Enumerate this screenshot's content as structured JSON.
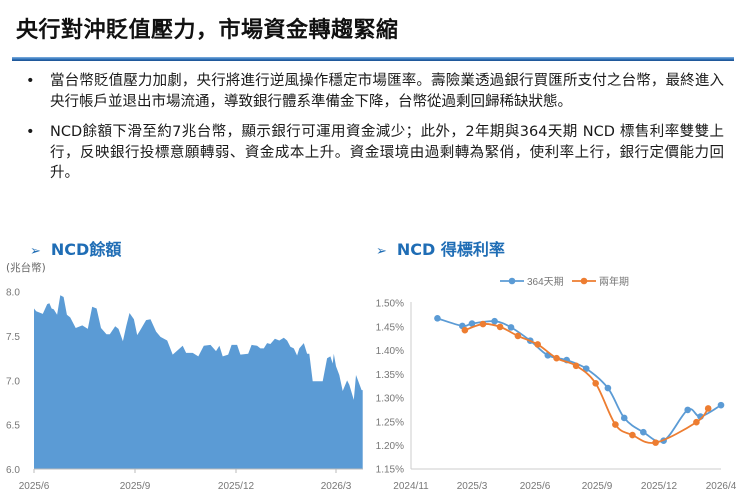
{
  "title": "央行對沖貶值壓力，市場資金轉趨緊縮",
  "bullets": [
    "當台幣貶值壓力加劇，央行將進行逆風操作穩定市場匯率。壽險業透過銀行買匯所支付之台幣，最終進入央行帳戶並退出市場流通，導致銀行體系準備金下降，台幣從過剩回歸稀缺狀態。",
    "NCD餘額下滑至約7兆台幣，顯示銀行可運用資金減少；此外，2年期與364天期 NCD 標售利率雙雙上行，反映銀行投標意願轉弱、資金成本上升。資金環境由過剩轉為緊俏，使利率上行，銀行定價能力回升。"
  ],
  "bullet_glyph": "•",
  "section_arrow": "➢",
  "colors": {
    "accent": "#1f6db5",
    "area": "#5b9bd5",
    "series_364": "#5b9bd5",
    "series_2y": "#ed7d31"
  },
  "chart_data": [
    {
      "type": "area",
      "title": "NCD餘額",
      "ylabel": "(兆台幣)",
      "ylim": [
        6.0,
        8.0
      ],
      "yticks": [
        "8.0",
        "7.5",
        "7.0",
        "6.5",
        "6.0"
      ],
      "xticks": [
        "2025/6",
        "2025/9",
        "2025/12",
        "2026/3"
      ],
      "grid": false,
      "x": [
        "2025-06-01",
        "2025-06-03",
        "2025-06-09",
        "2025-06-13",
        "2025-06-15",
        "2025-06-17",
        "2025-06-19",
        "2025-06-22",
        "2025-06-25",
        "2025-06-28",
        "2025-07-01",
        "2025-07-04",
        "2025-07-09",
        "2025-07-15",
        "2025-07-20",
        "2025-07-24",
        "2025-07-28",
        "2025-08-01",
        "2025-08-06",
        "2025-08-09",
        "2025-08-14",
        "2025-08-17",
        "2025-08-21",
        "2025-08-24",
        "2025-08-27",
        "2025-08-31",
        "2025-09-03",
        "2025-09-06",
        "2025-09-11",
        "2025-09-15",
        "2025-09-20",
        "2025-09-24",
        "2025-09-30",
        "2025-10-05",
        "2025-10-14",
        "2025-10-17",
        "2025-10-23",
        "2025-10-28",
        "2025-11-02",
        "2025-11-08",
        "2025-11-13",
        "2025-11-16",
        "2025-11-19",
        "2025-11-24",
        "2025-11-27",
        "2025-12-02",
        "2025-12-05",
        "2025-12-12",
        "2025-12-15",
        "2025-12-20",
        "2025-12-23",
        "2025-12-26",
        "2025-12-29",
        "2026-01-01",
        "2026-01-05",
        "2026-01-09",
        "2026-01-13",
        "2026-01-16",
        "2026-01-19",
        "2026-01-22",
        "2026-01-25",
        "2026-01-27",
        "2026-01-31",
        "2026-02-03",
        "2026-02-05",
        "2026-02-08",
        "2026-02-17",
        "2026-02-21",
        "2026-02-24",
        "2026-02-26",
        "2026-02-27",
        "2026-03-01",
        "2026-03-04",
        "2026-03-07",
        "2026-03-11",
        "2026-03-13",
        "2026-03-17",
        "2026-03-19",
        "2026-03-24",
        "2026-03-25"
      ],
      "values": [
        7.81,
        7.78,
        7.75,
        7.86,
        7.87,
        7.81,
        7.8,
        7.74,
        7.96,
        7.94,
        7.74,
        7.71,
        7.59,
        7.62,
        7.58,
        7.83,
        7.81,
        7.59,
        7.52,
        7.52,
        7.61,
        7.58,
        7.44,
        7.61,
        7.76,
        7.69,
        7.51,
        7.57,
        7.68,
        7.69,
        7.55,
        7.49,
        7.45,
        7.29,
        7.39,
        7.31,
        7.31,
        7.27,
        7.39,
        7.4,
        7.33,
        7.39,
        7.27,
        7.29,
        7.4,
        7.4,
        7.29,
        7.3,
        7.4,
        7.39,
        7.36,
        7.36,
        7.42,
        7.41,
        7.47,
        7.45,
        7.48,
        7.45,
        7.38,
        7.36,
        7.28,
        7.36,
        7.42,
        7.3,
        7.3,
        6.99,
        6.99,
        7.25,
        7.27,
        7.19,
        7.3,
        7.16,
        7.06,
        6.88,
        7.0,
        6.95,
        6.78,
        7.06,
        6.89,
        6.89
      ]
    },
    {
      "type": "line",
      "title": "NCD 得標利率",
      "ylim": [
        1.15,
        1.5
      ],
      "yticks": [
        "1.50%",
        "1.45%",
        "1.40%",
        "1.35%",
        "1.30%",
        "1.25%",
        "1.20%",
        "1.15%"
      ],
      "xticks": [
        "2024/11",
        "2025/3",
        "2025/6",
        "2025/9",
        "2025/12",
        "2026/4"
      ],
      "grid": false,
      "legend": "top",
      "series": [
        {
          "name": "364天期",
          "color": "#5b9bd5",
          "x": [
            "2024-12-23",
            "2025-02-10",
            "2025-03-01",
            "2025-04-03",
            "2025-04-27",
            "2025-05-25",
            "2025-06-20",
            "2025-07-18",
            "2025-08-16",
            "2025-09-17",
            "2025-10-11",
            "2025-11-08",
            "2025-12-10",
            "2026-01-26",
            "2026-02-20",
            "2026-04-01"
          ],
          "values": [
            1.467,
            1.451,
            1.456,
            1.461,
            1.448,
            1.42,
            1.389,
            1.379,
            1.361,
            1.32,
            1.257,
            1.227,
            1.209,
            1.274,
            1.26,
            1.284
          ]
        },
        {
          "name": "兩年期",
          "color": "#ed7d31",
          "x": [
            "2025-02-15",
            "2025-03-17",
            "2025-04-11",
            "2025-05-07",
            "2025-06-05",
            "2025-07-03",
            "2025-08-01",
            "2025-08-30",
            "2025-09-28",
            "2025-10-23",
            "2025-11-26",
            "2026-02-12",
            "2026-03-07"
          ],
          "values": [
            1.442,
            1.455,
            1.449,
            1.43,
            1.412,
            1.383,
            1.367,
            1.33,
            1.243,
            1.221,
            1.205,
            1.248,
            1.277
          ]
        }
      ]
    }
  ]
}
